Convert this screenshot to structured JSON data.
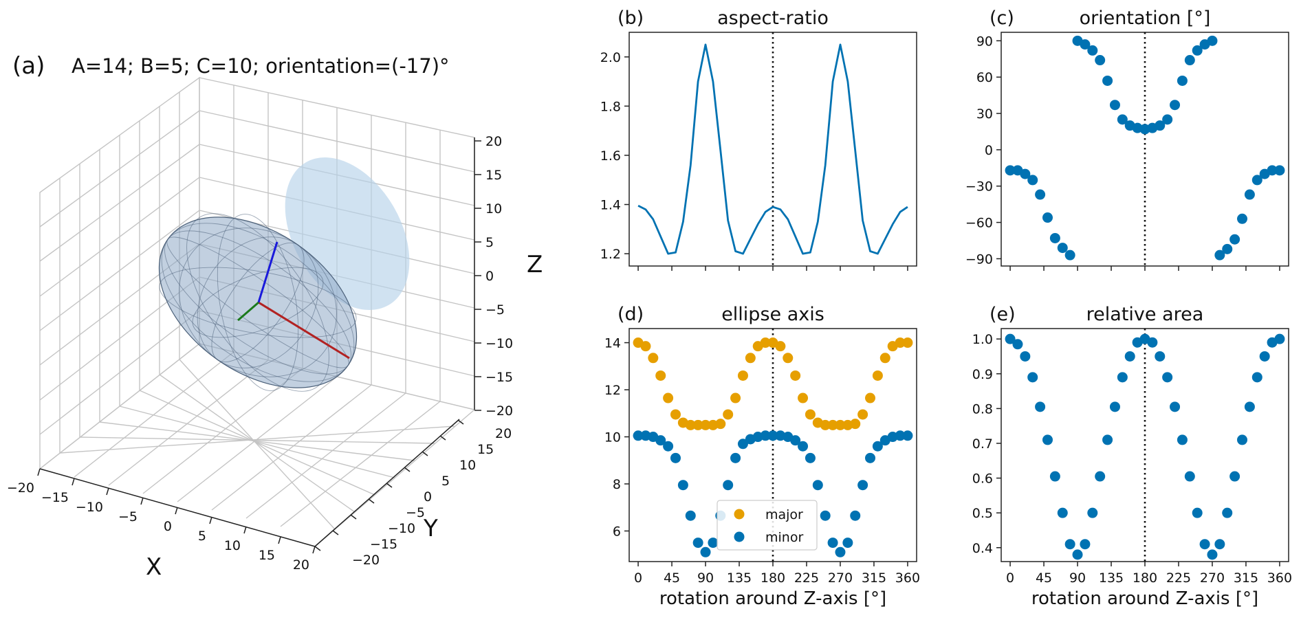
{
  "colors": {
    "blue": "#0072B2",
    "orange": "#E69F00",
    "ellipse_fill": "#b7d3ea",
    "ellipsoid": "#8fa9c6",
    "axis_red": "#b22222",
    "axis_blue": "#1a1adb",
    "axis_green": "#1b7a1b"
  },
  "chart_data": [
    {
      "panel": "(a)",
      "type": "3d-ellipsoid",
      "title": "A=14; B=5; C=10; orientation=(-17)°",
      "xlabel": "X",
      "ylabel": "Y",
      "zlabel": "Z",
      "xticks": [
        "−20",
        "−15",
        "−10",
        "−5",
        "0",
        "5",
        "10",
        "15",
        "20"
      ],
      "yticks": [
        "−20",
        "−15",
        "−10",
        "−5",
        "0",
        "5",
        "10",
        "15",
        "20"
      ],
      "zticks": [
        "20",
        "15",
        "10",
        "5",
        "0",
        "−5",
        "−10",
        "−15",
        "−20"
      ],
      "A": 14,
      "B": 5,
      "C": 10,
      "orientation": -17
    },
    {
      "panel": "(b)",
      "type": "line",
      "title": "aspect-ratio",
      "x": [
        0,
        10,
        20,
        30,
        40,
        50,
        60,
        70,
        80,
        90,
        100,
        110,
        120,
        130,
        140,
        150,
        160,
        170,
        180,
        190,
        200,
        210,
        220,
        230,
        240,
        250,
        260,
        270,
        280,
        290,
        300,
        310,
        320,
        330,
        340,
        350,
        360
      ],
      "values": [
        1.395,
        1.38,
        1.34,
        1.27,
        1.2,
        1.205,
        1.33,
        1.56,
        1.9,
        2.05,
        1.9,
        1.62,
        1.335,
        1.21,
        1.2,
        1.26,
        1.32,
        1.37,
        1.39,
        1.38,
        1.34,
        1.27,
        1.2,
        1.205,
        1.33,
        1.56,
        1.9,
        2.05,
        1.9,
        1.62,
        1.335,
        1.21,
        1.2,
        1.26,
        1.32,
        1.37,
        1.39
      ],
      "ylim": [
        1.15,
        2.1
      ],
      "yticks": [
        1.2,
        1.4,
        1.6,
        1.8,
        2.0
      ],
      "ytick_labels": [
        "1.2",
        "1.4",
        "1.6",
        "1.8",
        "2.0"
      ],
      "xlim": [
        -12,
        372
      ],
      "xticks": [
        0,
        45,
        90,
        135,
        180,
        225,
        270,
        315,
        360
      ],
      "vline": 180
    },
    {
      "panel": "(c)",
      "type": "scatter",
      "title": "orientation [°]",
      "x": [
        0,
        10,
        20,
        30,
        40,
        50,
        60,
        70,
        80,
        90,
        100,
        110,
        120,
        130,
        140,
        150,
        160,
        170,
        180,
        190,
        200,
        210,
        220,
        230,
        240,
        250,
        260,
        270,
        280,
        290,
        300,
        310,
        320,
        330,
        340,
        350,
        360
      ],
      "values": [
        -17,
        -17,
        -20,
        -25,
        -37,
        -56,
        -73,
        -81,
        -87,
        90,
        87,
        82,
        74,
        57,
        37,
        25,
        20,
        18,
        17,
        18,
        20,
        25,
        37,
        57,
        74,
        82,
        87,
        90,
        -87,
        -82,
        -74,
        -57,
        -37,
        -25,
        -20,
        -17,
        -17
      ],
      "ylim": [
        -96,
        97
      ],
      "yticks": [
        -90,
        -60,
        -30,
        0,
        30,
        60,
        90
      ],
      "ytick_labels": [
        "−90",
        "−60",
        "−30",
        "0",
        "30",
        "60",
        "90"
      ],
      "xlim": [
        -12,
        372
      ],
      "xticks": [
        0,
        45,
        90,
        135,
        180,
        225,
        270,
        315,
        360
      ],
      "vline": 180
    },
    {
      "panel": "(d)",
      "type": "scatter",
      "title": "ellipse axis",
      "x": [
        0,
        10,
        20,
        30,
        40,
        50,
        60,
        70,
        80,
        90,
        100,
        110,
        120,
        130,
        140,
        150,
        160,
        170,
        180,
        190,
        200,
        210,
        220,
        230,
        240,
        250,
        260,
        270,
        280,
        290,
        300,
        310,
        320,
        330,
        340,
        350,
        360
      ],
      "series": [
        {
          "name": "major",
          "color": "#E69F00",
          "values": [
            14,
            13.85,
            13.35,
            12.6,
            11.65,
            10.95,
            10.6,
            10.5,
            10.5,
            10.5,
            10.5,
            10.55,
            10.95,
            11.65,
            12.6,
            13.35,
            13.85,
            14,
            14,
            13.85,
            13.35,
            12.6,
            11.65,
            10.95,
            10.6,
            10.5,
            10.5,
            10.5,
            10.5,
            10.55,
            10.95,
            11.65,
            12.6,
            13.35,
            13.85,
            14,
            14
          ]
        },
        {
          "name": "minor",
          "color": "#0072B2",
          "values": [
            10.05,
            10.05,
            10.0,
            9.85,
            9.6,
            9.1,
            7.95,
            6.65,
            5.5,
            5.1,
            5.5,
            6.65,
            7.95,
            9.1,
            9.7,
            9.9,
            10.0,
            10.05,
            10.05,
            10.05,
            10.0,
            9.85,
            9.6,
            9.1,
            7.95,
            6.65,
            5.5,
            5.1,
            5.5,
            6.65,
            7.95,
            9.1,
            9.6,
            9.85,
            10.0,
            10.05,
            10.05
          ]
        }
      ],
      "ylim": [
        4.7,
        14.6
      ],
      "yticks": [
        6,
        8,
        10,
        12,
        14
      ],
      "ytick_labels": [
        "6",
        "8",
        "10",
        "12",
        "14"
      ],
      "xlim": [
        -12,
        372
      ],
      "xticks": [
        0,
        45,
        90,
        135,
        180,
        225,
        270,
        315,
        360
      ],
      "xtick_labels": [
        "0",
        "45",
        "90",
        "135",
        "180",
        "225",
        "270",
        "315",
        "360"
      ],
      "xlabel": "rotation around Z-axis [°]",
      "legend": {
        "major": "major",
        "minor": "minor"
      },
      "vline": 180
    },
    {
      "panel": "(e)",
      "type": "scatter",
      "title": "relative area",
      "x": [
        0,
        10,
        20,
        30,
        40,
        50,
        60,
        70,
        80,
        90,
        100,
        110,
        120,
        130,
        140,
        150,
        160,
        170,
        180,
        190,
        200,
        210,
        220,
        230,
        240,
        250,
        260,
        270,
        280,
        290,
        300,
        310,
        320,
        330,
        340,
        350,
        360
      ],
      "values": [
        1.0,
        0.985,
        0.95,
        0.89,
        0.805,
        0.71,
        0.605,
        0.5,
        0.41,
        0.38,
        0.41,
        0.5,
        0.605,
        0.71,
        0.805,
        0.89,
        0.95,
        0.99,
        1.0,
        0.99,
        0.95,
        0.89,
        0.805,
        0.71,
        0.605,
        0.5,
        0.41,
        0.38,
        0.41,
        0.5,
        0.605,
        0.71,
        0.805,
        0.89,
        0.95,
        0.99,
        1.0
      ],
      "ylim": [
        0.36,
        1.03
      ],
      "yticks": [
        0.4,
        0.5,
        0.6,
        0.7,
        0.8,
        0.9,
        1.0
      ],
      "ytick_labels": [
        "0.4",
        "0.5",
        "0.6",
        "0.7",
        "0.8",
        "0.9",
        "1.0"
      ],
      "xlim": [
        -12,
        372
      ],
      "xticks": [
        0,
        45,
        90,
        135,
        180,
        225,
        270,
        315,
        360
      ],
      "xtick_labels": [
        "0",
        "45",
        "90",
        "135",
        "180",
        "225",
        "270",
        "315",
        "360"
      ],
      "xlabel": "rotation around Z-axis [°]",
      "vline": 180
    }
  ]
}
